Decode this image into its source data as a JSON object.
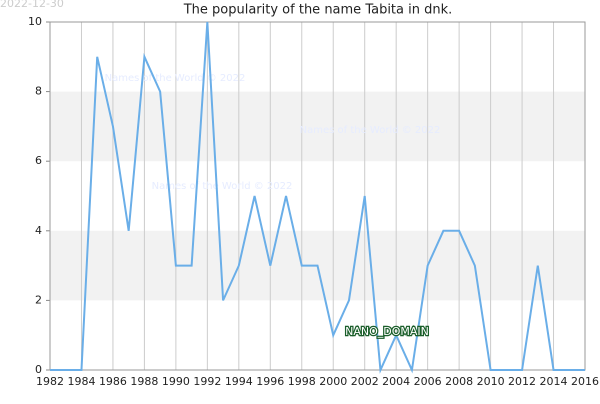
{
  "chart_data": {
    "type": "line",
    "title": "The popularity of the name Tabita in dnk.",
    "x": [
      1982,
      1983,
      1984,
      1985,
      1986,
      1987,
      1988,
      1989,
      1990,
      1991,
      1992,
      1993,
      1994,
      1995,
      1996,
      1997,
      1998,
      1999,
      2000,
      2001,
      2002,
      2003,
      2004,
      2005,
      2006,
      2007,
      2008,
      2009,
      2010,
      2011,
      2012,
      2013,
      2014,
      2015,
      2016
    ],
    "values": [
      0,
      0,
      0,
      9,
      7,
      4,
      9,
      8,
      3,
      3,
      10,
      2,
      3,
      5,
      3,
      5,
      3,
      3,
      1,
      2,
      5,
      0,
      1,
      0,
      3,
      4,
      4,
      3,
      0,
      0,
      0,
      3,
      0,
      0,
      0
    ],
    "color": "#6aaee8",
    "xlim": [
      1982,
      2016
    ],
    "xticks": [
      1982,
      1984,
      1986,
      1988,
      1990,
      1992,
      1994,
      1996,
      1998,
      2000,
      2002,
      2004,
      2006,
      2008,
      2010,
      2012,
      2014,
      2016
    ],
    "ylim": [
      0,
      10
    ],
    "yticks": [
      0,
      2,
      4,
      6,
      8,
      10
    ],
    "grid": true,
    "annotations": [
      "2022-12-30",
      "Names of the World © 2022",
      "Names of the World © 2022",
      "Names of the World © 2022",
      "NANO_DOMAIN"
    ]
  }
}
